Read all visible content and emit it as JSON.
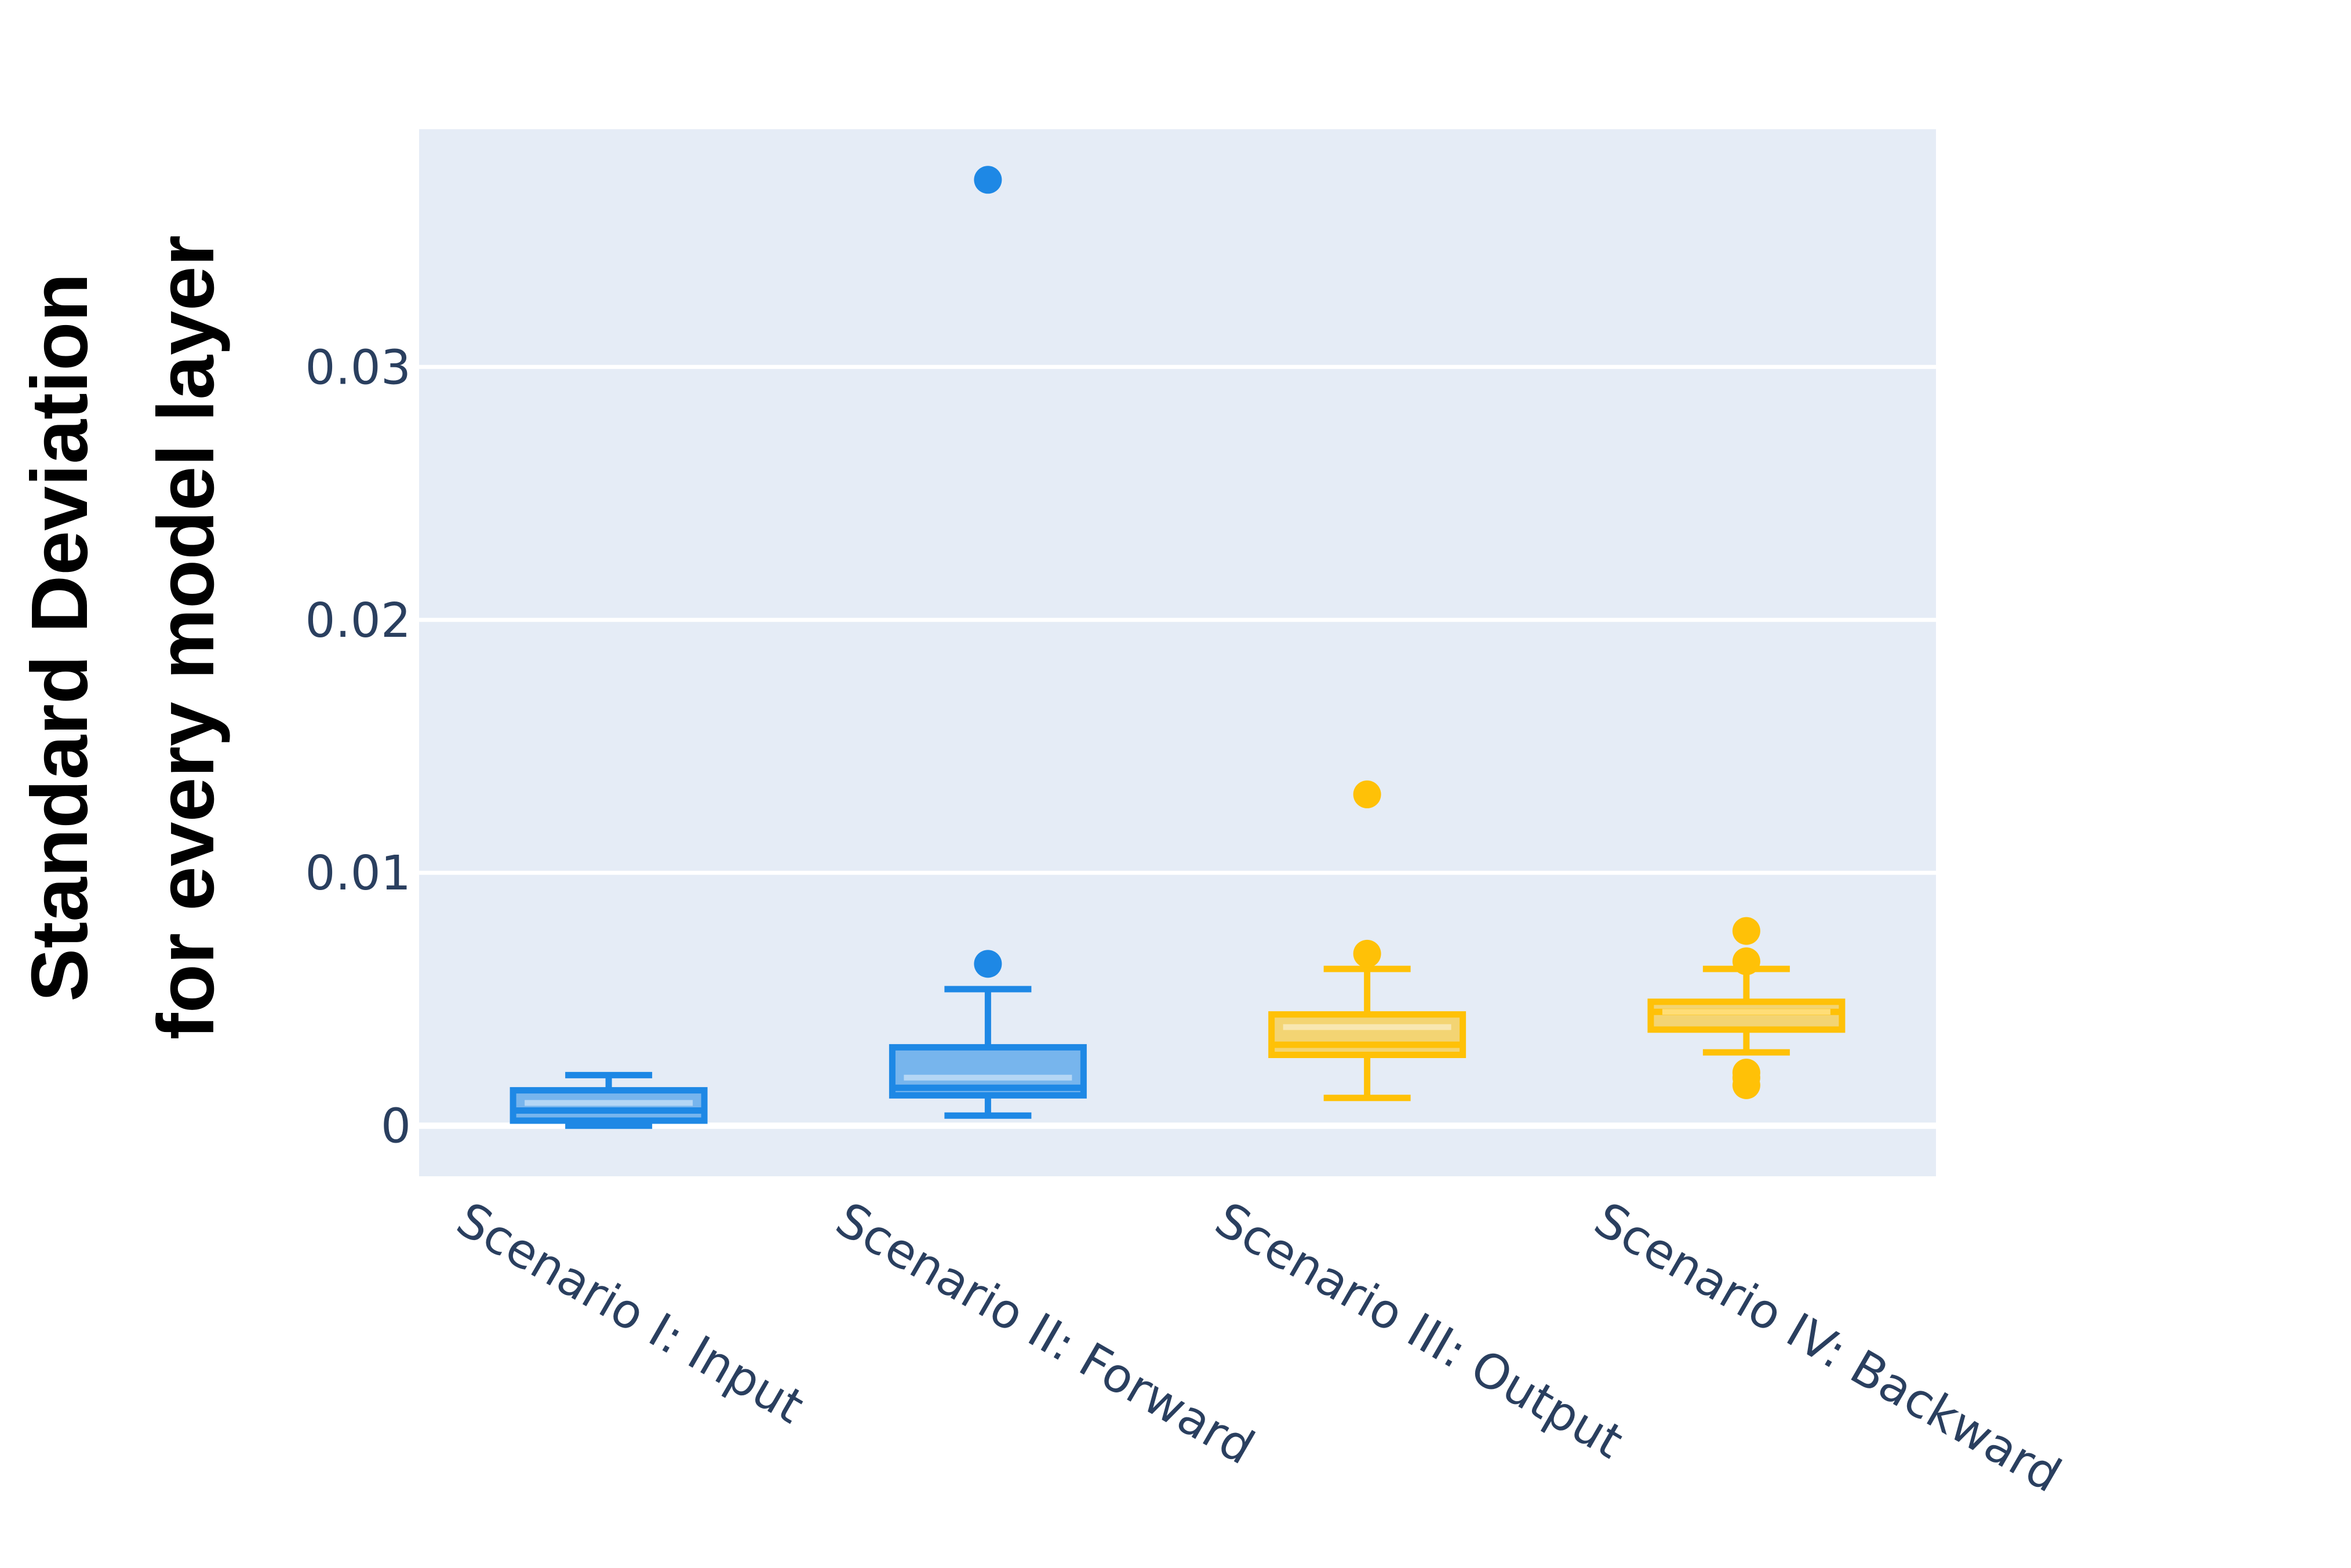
{
  "chart_data": {
    "type": "box",
    "ylabel_lines": [
      "Standard Deviation",
      "for every model layer"
    ],
    "ylim": [
      -0.002,
      0.0394
    ],
    "yticks": [
      0,
      0.01,
      0.02,
      0.03
    ],
    "ytick_labels": [
      "0",
      "0.01",
      "0.02",
      "0.03"
    ],
    "grid": true,
    "legend": "none",
    "colors": {
      "plot_bg": "#e5ecf6",
      "grid": "#ffffff",
      "tick_text": "#2a3f5f",
      "blue": "#1e88e5",
      "yellow": "#ffc107"
    },
    "boxes": [
      {
        "category": "Scenario I: Input",
        "color": "blue",
        "whisker_low": 0.0,
        "q1": 0.0002,
        "median": 0.0006,
        "mean": 0.0009,
        "q3": 0.0014,
        "whisker_high": 0.002,
        "outliers": []
      },
      {
        "category": "Scenario II: Forward",
        "color": "blue",
        "whisker_low": 0.0004,
        "q1": 0.0012,
        "median": 0.0015,
        "mean": 0.0019,
        "q3": 0.0031,
        "whisker_high": 0.0054,
        "outliers": [
          0.0064,
          0.0374
        ]
      },
      {
        "category": "Scenario III: Output",
        "color": "yellow",
        "whisker_low": 0.0011,
        "q1": 0.0028,
        "median": 0.0032,
        "mean": 0.0039,
        "q3": 0.0044,
        "whisker_high": 0.0062,
        "outliers": [
          0.0068,
          0.0131
        ]
      },
      {
        "category": "Scenario IV: Backward",
        "color": "yellow",
        "whisker_low": 0.0029,
        "q1": 0.0038,
        "median": 0.0045,
        "mean": 0.0045,
        "q3": 0.0049,
        "whisker_high": 0.0062,
        "outliers": [
          0.0016,
          0.0019,
          0.0021,
          0.0065,
          0.0077
        ]
      }
    ]
  }
}
